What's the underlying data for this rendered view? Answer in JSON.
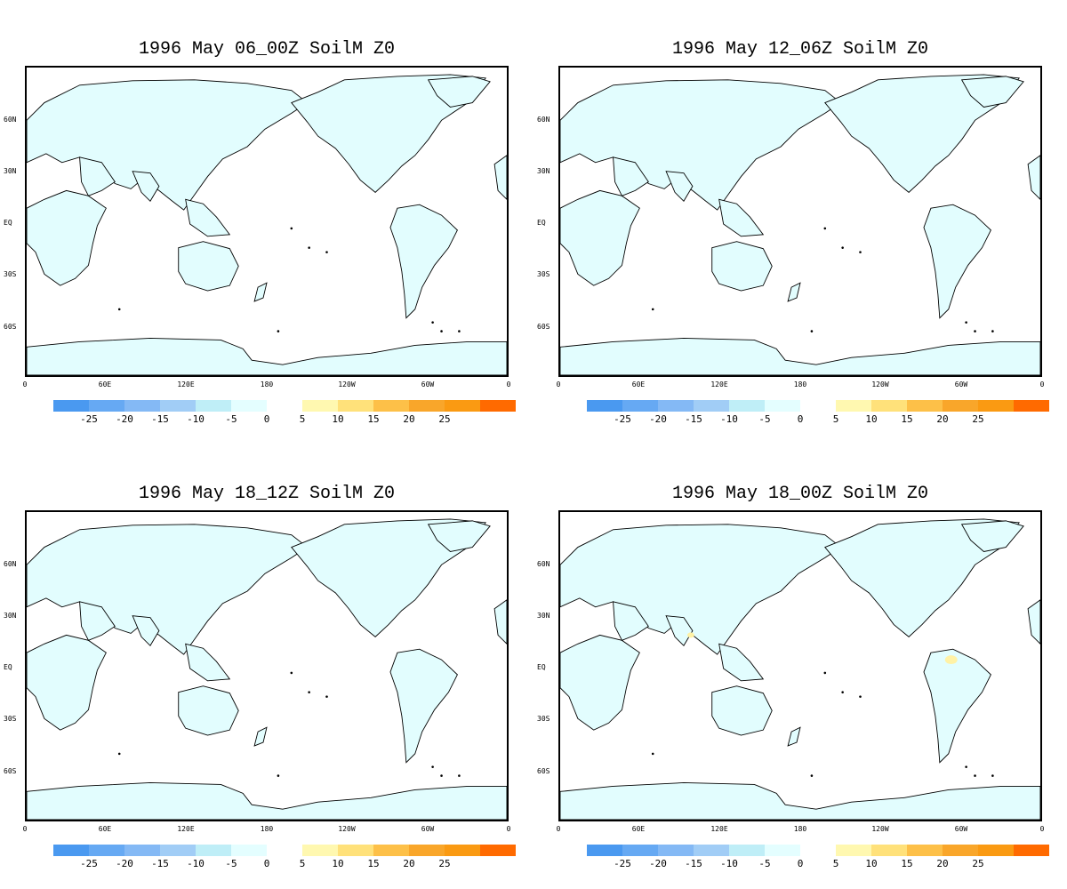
{
  "panels": [
    {
      "title": "1996 May 06_00Z SoilM Z0",
      "anomaly_spots": []
    },
    {
      "title": "1996 May 12_06Z SoilM Z0",
      "anomaly_spots": []
    },
    {
      "title": "1996 May 18_12Z SoilM Z0",
      "anomaly_spots": []
    },
    {
      "title": "1996 May 18_00Z SoilM Z0",
      "anomaly_spots": [
        "southern Asia (+5)",
        "northern South America (+5)"
      ]
    }
  ],
  "lat_labels": [
    "60N",
    "30N",
    "EQ",
    "30S",
    "60S"
  ],
  "lon_labels": [
    "0",
    "60E",
    "120E",
    "180",
    "120W",
    "60W",
    "0"
  ],
  "colorbar": {
    "negative": {
      "colors": [
        "#4a99f0",
        "#66a9f3",
        "#84b9f5",
        "#a1cdf6",
        "#bfeef7",
        "#e4feff"
      ],
      "labels": [
        "-25",
        "-20",
        "-15",
        "-10",
        "-5",
        "0"
      ]
    },
    "positive": {
      "colors": [
        "#fff8b0",
        "#ffe17a",
        "#fdc048",
        "#f9a62a",
        "#fa9a12",
        "#ff6a00"
      ],
      "labels": [
        "5",
        "10",
        "15",
        "20",
        "25"
      ]
    }
  },
  "colors": {
    "land_fill": "#e2fdfe",
    "coastline": "#000000",
    "ocean": "#ffffff",
    "positive_spot": "#fff2a6"
  }
}
